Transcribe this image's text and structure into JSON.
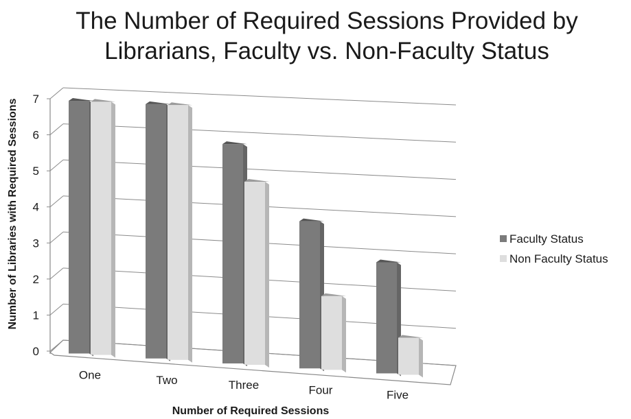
{
  "chart_data": {
    "type": "bar",
    "style": "3d-clustered-column",
    "title_lines": [
      "The Number of Required Sessions Provided by",
      "Librarians, Faculty vs. Non-Faculty Status"
    ],
    "xlabel": "Number of Required Sessions",
    "ylabel": "Number of Libraries with Required Sessions",
    "categories": [
      "One",
      "Two",
      "Three",
      "Four",
      "Five"
    ],
    "yticks": [
      "0",
      "1",
      "2",
      "3",
      "4",
      "5",
      "6",
      "7"
    ],
    "ylim": [
      0,
      7
    ],
    "grid": true,
    "legend_position": "right",
    "series": [
      {
        "name": "Faculty Status",
        "values": [
          7,
          7,
          6,
          4,
          3
        ],
        "color": "#7b7b7b"
      },
      {
        "name": "Non Faculty Status",
        "values": [
          7,
          7,
          5,
          2,
          1
        ],
        "color": "#dedede"
      }
    ]
  }
}
